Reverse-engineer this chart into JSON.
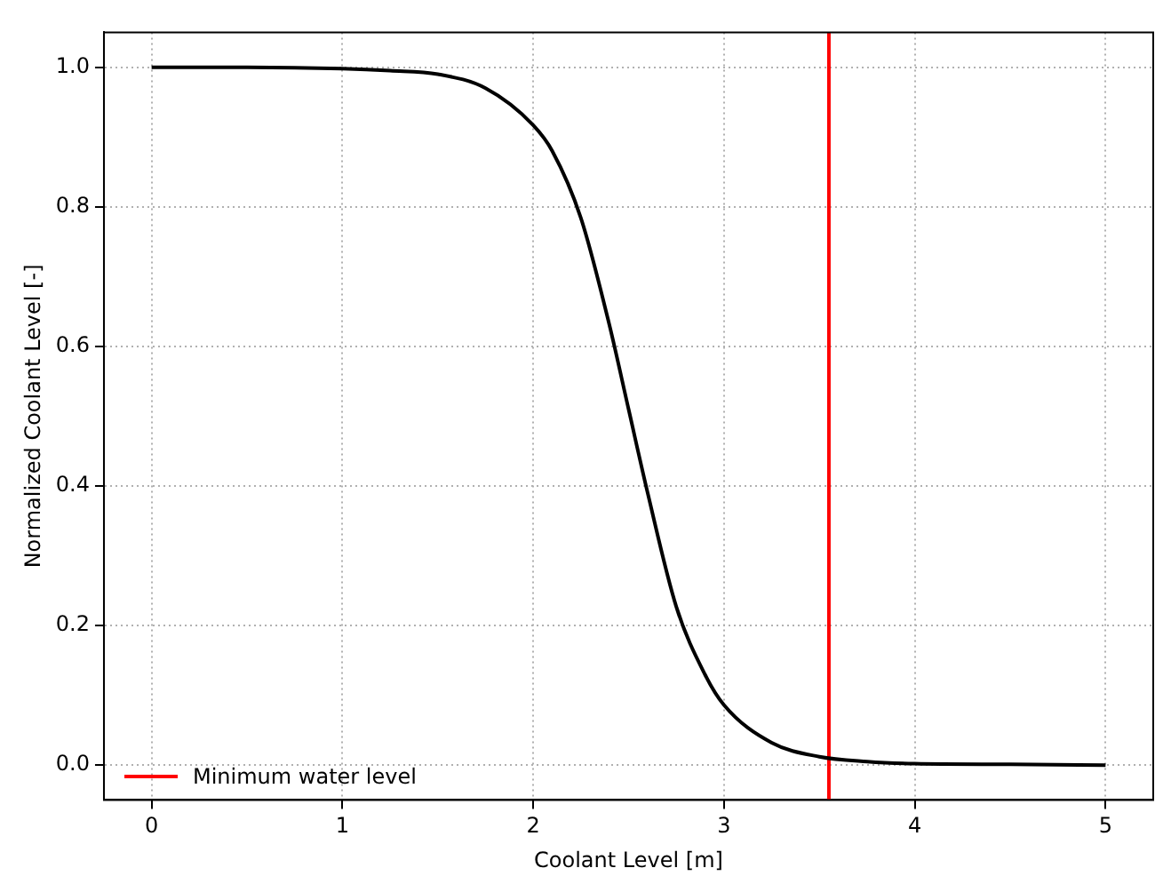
{
  "chart_data": {
    "type": "line",
    "xlabel": "Coolant Level [m]",
    "ylabel": "Normalized Coolant Level [-]",
    "x": [
      0,
      0.5,
      1,
      1.25,
      1.5,
      1.75,
      2,
      2.1,
      2.25,
      2.4,
      2.5,
      2.6,
      2.75,
      2.9,
      3,
      3.25,
      3.5,
      3.75,
      4,
      4.5,
      5
    ],
    "series": [
      {
        "color": "#000000",
        "values": [
          1,
          1,
          0.998,
          0.995,
          0.99,
          0.97,
          0.917,
          0.88,
          0.784,
          0.63,
          0.51,
          0.39,
          0.227,
          0.13,
          0.086,
          0.032,
          0.012,
          0.005,
          0.002,
          0.001,
          0
        ]
      },
      {
        "name": "Minimum water level",
        "color": "#ff0000",
        "x": [
          3.55,
          3.55
        ],
        "values": [
          -0.05,
          1.05
        ]
      }
    ],
    "xlim": [
      -0.25,
      5.25
    ],
    "ylim": [
      -0.05,
      1.05
    ],
    "xticks": [
      0,
      1,
      2,
      3,
      4,
      5
    ],
    "yticks": [
      {
        "value": 0,
        "label": "0.0"
      },
      {
        "value": 0.2,
        "label": "0.2"
      },
      {
        "value": 0.4,
        "label": "0.4"
      },
      {
        "value": 0.6,
        "label": "0.6"
      },
      {
        "value": 0.8,
        "label": "0.8"
      },
      {
        "value": 1,
        "label": "1.0"
      }
    ],
    "grid": true,
    "legend": "bottom left",
    "marker": "none",
    "line_style": "solid"
  }
}
